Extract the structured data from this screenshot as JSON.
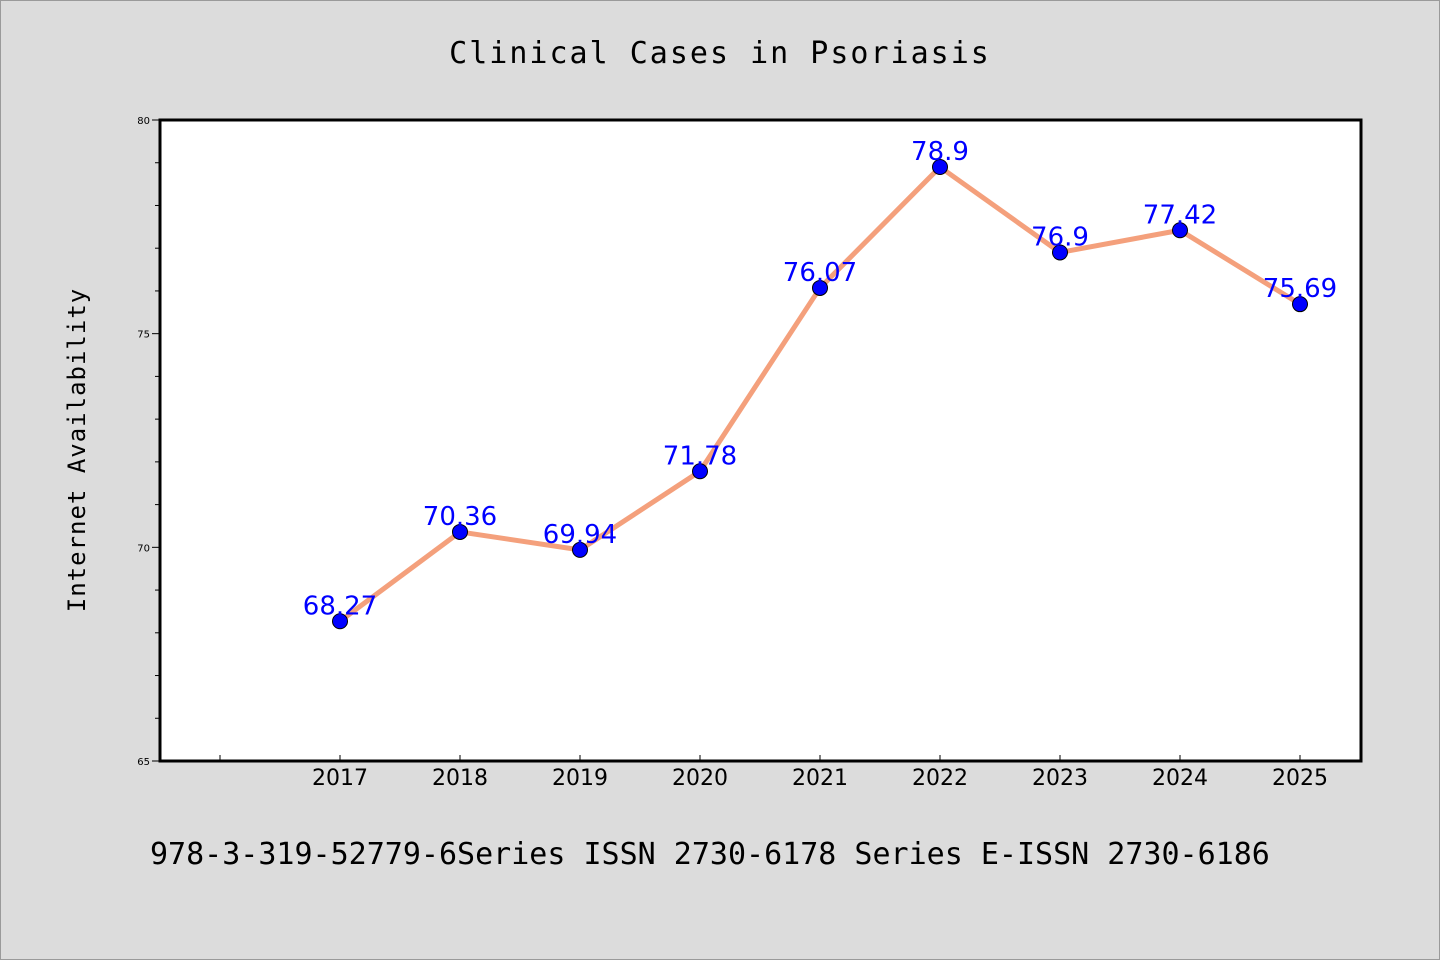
{
  "chart_data": {
    "type": "line",
    "title": "Clinical Cases in Psoriasis",
    "xlabel": "",
    "ylabel": "Internet Availability",
    "categories": [
      "2017",
      "2018",
      "2019",
      "2020",
      "2021",
      "2022",
      "2023",
      "2024",
      "2025"
    ],
    "series": [
      {
        "values": [
          68.27,
          70.36,
          69.94,
          71.78,
          76.07,
          78.9,
          76.9,
          77.42,
          75.69
        ],
        "labels": [
          "68.27",
          "70.36",
          "69.94",
          "71.78",
          "76.07",
          "78.9",
          "76.9",
          "77.42",
          "75.69"
        ],
        "line_color": "#f4a07c",
        "marker_color": "#0000ff"
      }
    ],
    "ylim": [
      65,
      80
    ],
    "yticks": [
      "65",
      "70",
      "75",
      "80"
    ],
    "grid": false,
    "legend": "none"
  },
  "footer": {
    "text": "978-3-319-52779-6Series ISSN 2730-6178 Series E-ISSN 2730-6186"
  },
  "colors": {
    "background": "#dcdcdc",
    "plot_background": "#ffffff",
    "line": "#f4a07c",
    "marker": "#0000ff",
    "data_label": "#0000ff"
  }
}
